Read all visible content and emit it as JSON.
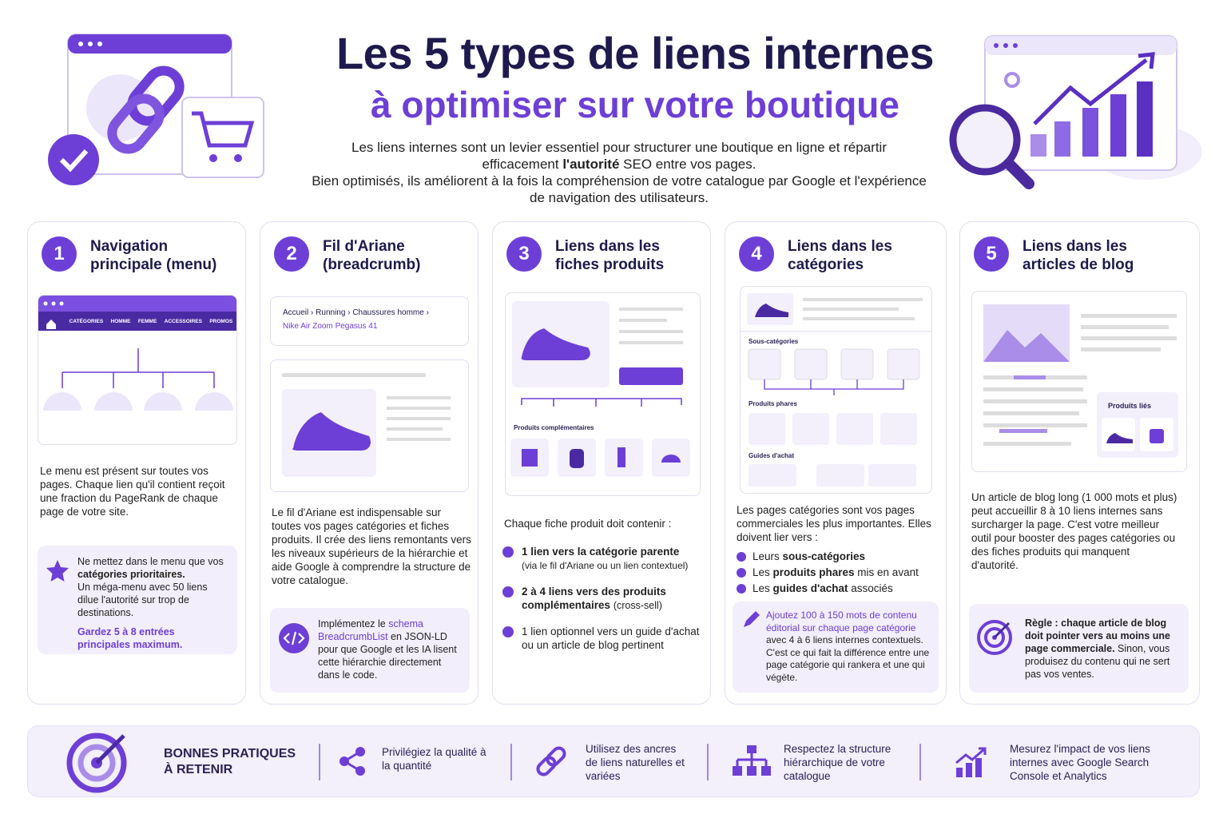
{
  "header": {
    "title": "Les 5 types de liens internes",
    "subtitle": "à optimiser sur votre boutique",
    "intro": [
      "Les liens internes sont un levier essentiel pour structurer une boutique en ligne et répartir efficacement ",
      "l'autorité",
      " SEO entre vos pages.",
      "Bien optimisés, ils améliorent à la fois la compréhension de votre catalogue par Google et l'expérience de navigation des utilisateurs."
    ]
  },
  "cards": [
    {
      "number": "1",
      "title": "Navigation principale (menu)",
      "menu": [
        "CATÉGORIES",
        "HOMME",
        "FEMME",
        "ACCESSOIRES",
        "PROMOS"
      ],
      "description": "Le menu est présent sur toutes vos pages. Chaque lien qu'il contient reçoit une fraction du PageRank de chaque page de votre site.",
      "tip": [
        "Ne mettez dans le menu que vos ",
        "catégories prioritaires.",
        "Un méga-menu avec 50 liens dilue l'autorité sur trop de destinations.",
        "Gardez 5 à 8 entrées principales maximum."
      ]
    },
    {
      "number": "2",
      "title": "Fil d'Ariane (breadcrumb)",
      "breadcrumb": [
        "Accueil",
        "Running",
        "Chaussures homme"
      ],
      "current": "Nike Air Zoom Pegasus 41",
      "description": "Le fil d'Ariane est indispensable sur toutes vos pages catégories et fiches produits. Il crée des liens remontants vers les niveaux supérieurs de la hiérarchie et aide Google à comprendre la structure de votre catalogue.",
      "tip": [
        "Implémentez le ",
        "schema BreadcrumbList",
        " en JSON-LD",
        " pour que Google et les IA lisent cette hiérarchie directement dans le code."
      ]
    },
    {
      "number": "3",
      "title": "Liens dans les fiches produits",
      "label": "Produits complémentaires",
      "description": "Chaque fiche produit doit contenir :",
      "list": [
        {
          "strong": "1 lien vers la catégorie parente",
          "text": "(via le fil d'Ariane ou un lien contextuel)"
        },
        {
          "strong": "2 à 4 liens vers des produits complémentaires",
          "text": "(cross-sell)"
        },
        {
          "text": "1 lien optionnel vers un guide d'achat ou un article de blog pertinent"
        }
      ]
    },
    {
      "number": "4",
      "title": "Liens dans les catégories",
      "labels": [
        "Sous-catégories",
        "Produits phares",
        "Guides d'achat"
      ],
      "description": "Les pages catégories sont vos pages commerciales les plus importantes. Elles doivent lier vers :",
      "list": [
        [
          "Leurs ",
          "sous-catégories",
          ""
        ],
        [
          "Les ",
          "produits phares",
          " mis en avant"
        ],
        [
          "Les ",
          "guides d'achat",
          " associés"
        ]
      ],
      "tip": [
        "Ajoutez 100 à 150 mots de contenu éditorial sur chaque page catégorie",
        " avec 4 à 6 liens internes contextuels. C'est ce qui fait la différence entre une page catégorie qui rankera et une qui végète."
      ]
    },
    {
      "number": "5",
      "title": "Liens dans les articles de blog",
      "label": "Produits liés",
      "description": "Un article de blog long (1 000 mots et plus) peut accueillir 8 à 10 liens internes sans surcharger la page. C'est votre meilleur outil pour booster des pages catégories ou des fiches produits qui manquent d'autorité.",
      "tip": [
        "Règle : chaque article de blog doit pointer vers au moins une page commerciale.",
        " Sinon, vous produisez du contenu qui ne sert pas vos ventes."
      ]
    }
  ],
  "footer": {
    "title": "BONNES PRATIQUES À RETENIR",
    "items": [
      "Privilégiez la qualité à la quantité",
      "Utilisez des ancres de liens naturelles et variées",
      "Respectez la structure hiérarchique de votre catalogue",
      "Mesurez l'impact de vos liens internes avec Google Search Console et Analytics"
    ]
  }
}
